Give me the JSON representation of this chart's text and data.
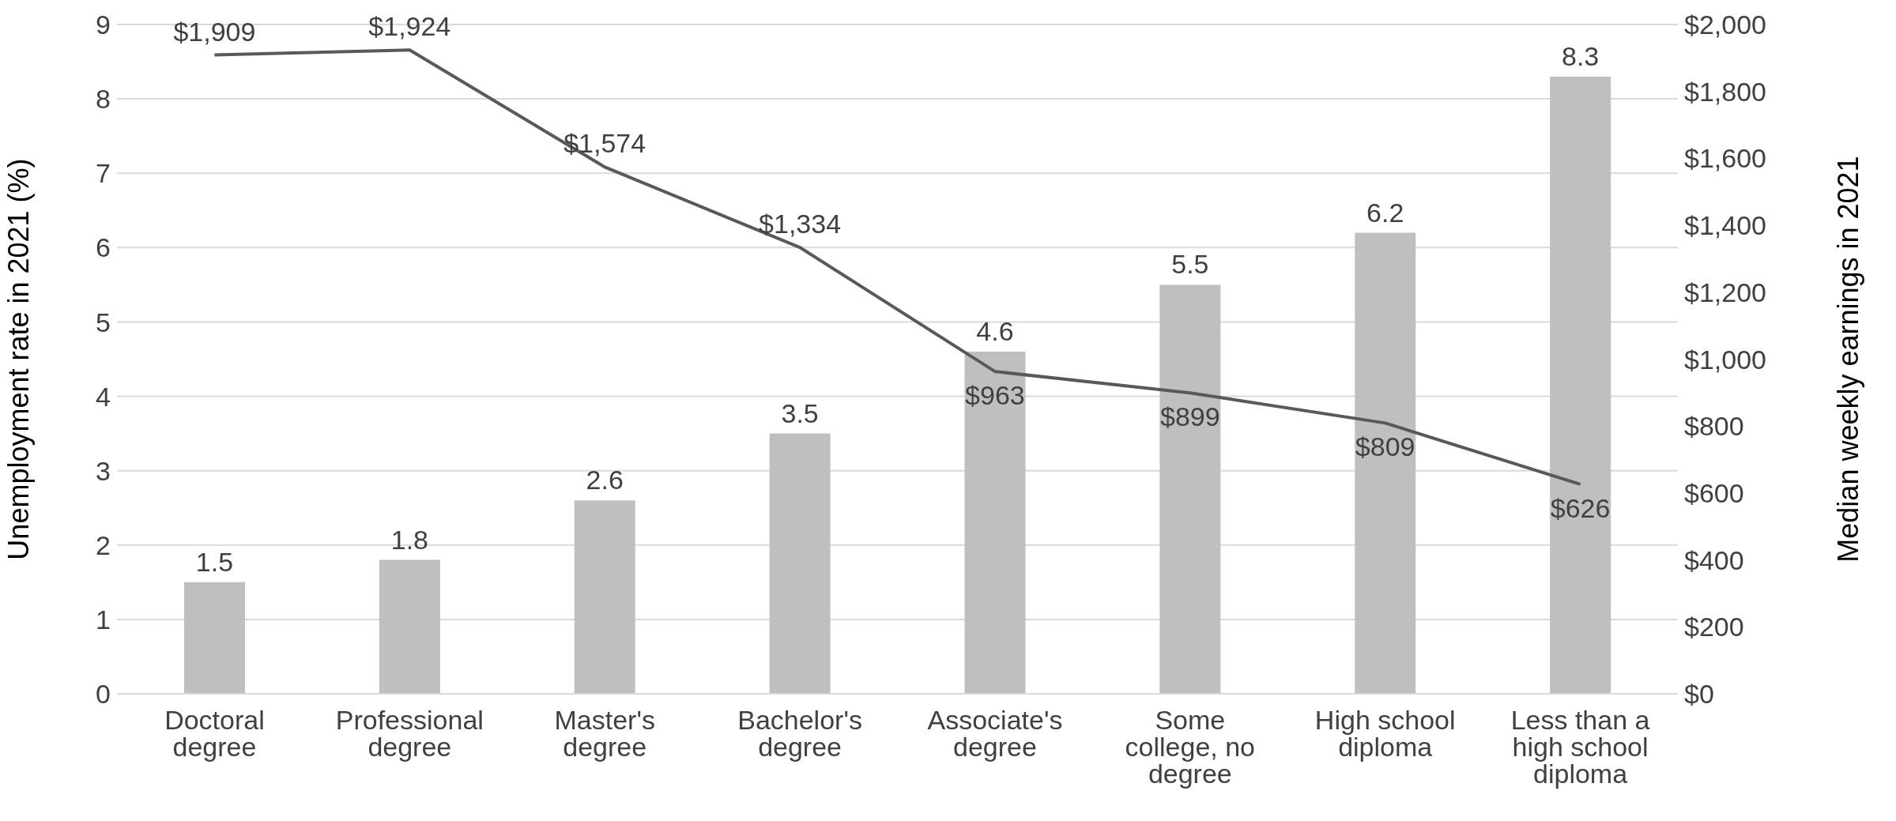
{
  "chart_data": {
    "type": "bar",
    "categories": [
      "Doctoral degree",
      "Professional degree",
      "Master's degree",
      "Bachelor's degree",
      "Associate's degree",
      "Some college, no degree",
      "High school diploma",
      "Less than a high school diploma"
    ],
    "ylabel": "Unemployment rate in 2021 (%)",
    "y2label": "Median weekly earnings in 2021",
    "ylim": [
      0,
      9
    ],
    "yticks": [
      0,
      1,
      2,
      3,
      4,
      5,
      6,
      7,
      8,
      9
    ],
    "y2lim": [
      0,
      2000
    ],
    "y2ticks": [
      {
        "value": 0,
        "label": "$0"
      },
      {
        "value": 200,
        "label": "$200"
      },
      {
        "value": 400,
        "label": "$400"
      },
      {
        "value": 600,
        "label": "$600"
      },
      {
        "value": 800,
        "label": "$800"
      },
      {
        "value": 1000,
        "label": "$1,000"
      },
      {
        "value": 1200,
        "label": "$1,200"
      },
      {
        "value": 1400,
        "label": "$1,400"
      },
      {
        "value": 1600,
        "label": "$1,600"
      },
      {
        "value": 1800,
        "label": "$1,800"
      },
      {
        "value": 2000,
        "label": "$2,000"
      }
    ],
    "grid": "y",
    "legend": false,
    "series": [
      {
        "color": "#bfbfbf",
        "values": [
          1.5,
          1.8,
          2.6,
          3.5,
          4.6,
          5.5,
          6.2,
          8.3
        ],
        "value_labels": [
          "1.5",
          "1.8",
          "2.6",
          "3.5",
          "4.6",
          "5.5",
          "6.2",
          "8.3"
        ]
      },
      {
        "type": "line",
        "axis": "y2",
        "color": "#595959",
        "marker": "none",
        "line_style": "solid",
        "values": [
          1909,
          1924,
          1574,
          1334,
          963,
          899,
          809,
          626
        ],
        "value_labels": [
          "$1,909",
          "$1,924",
          "$1,574",
          "$1,334",
          "$963",
          "$899",
          "$809",
          "$626"
        ]
      }
    ]
  }
}
